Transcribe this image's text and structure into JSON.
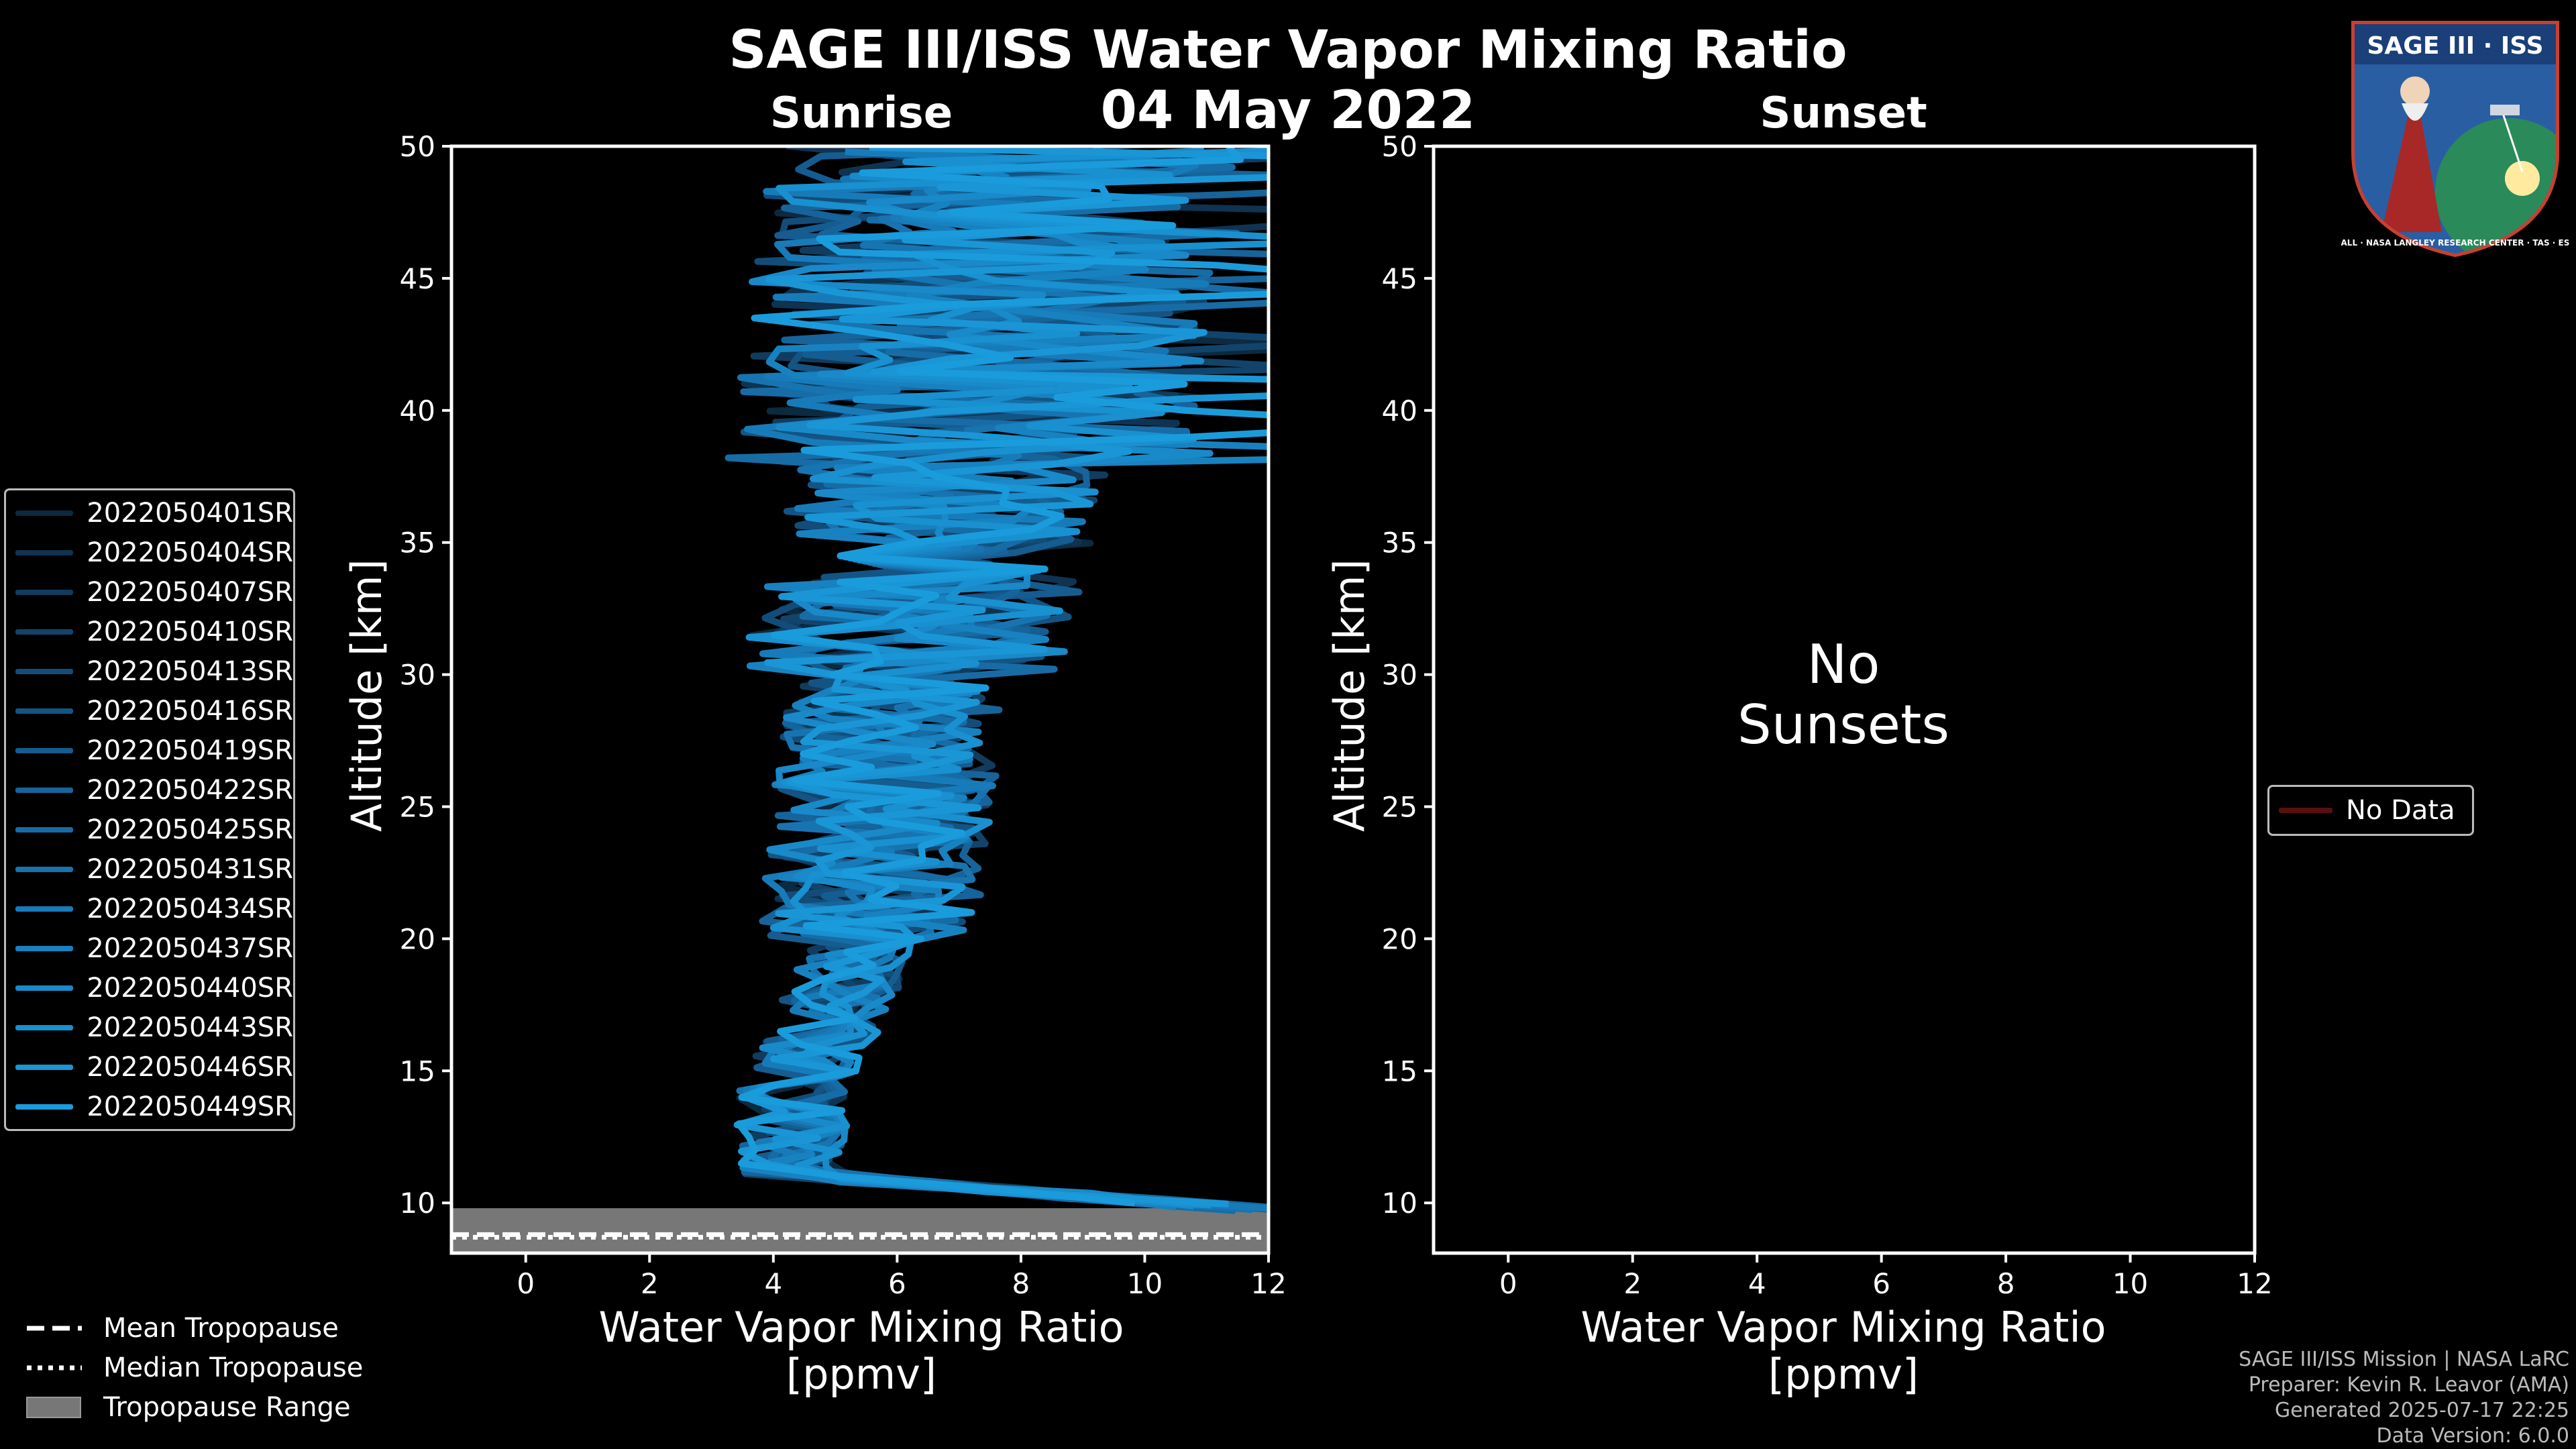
{
  "header": {
    "title": "SAGE III/ISS Water Vapor Mixing Ratio",
    "date": "04 May 2022"
  },
  "colors": {
    "background": "#000000",
    "profile_base": "#1a91d0",
    "tropopause_range": "#777777",
    "nodata": "#5a0f0f"
  },
  "logo": {
    "name": "SAGE III · ISS",
    "ring_text": "BALL · NASA LANGLEY RESEARCH CENTER · TAS · ESA"
  },
  "chart_data": [
    {
      "panel": "sunrise",
      "type": "line",
      "title": "Sunrise",
      "xlabel_line1": "Water Vapor Mixing Ratio",
      "xlabel_line2": "[ppmv]",
      "ylabel": "Altitude [km]",
      "xlim": [
        -1.2,
        12
      ],
      "ylim": [
        8.1,
        50
      ],
      "xticks": [
        0,
        2,
        4,
        6,
        8,
        10,
        12
      ],
      "yticks": [
        10,
        15,
        20,
        25,
        30,
        35,
        40,
        45,
        50
      ],
      "tropopause": {
        "mean_km": 8.8,
        "median_km": 8.7,
        "range_km": [
          8.1,
          9.8
        ]
      },
      "series": [
        {
          "name": "2022050401SR",
          "color": "#0c2a40"
        },
        {
          "name": "2022050404SR",
          "color": "#0f3350"
        },
        {
          "name": "2022050407SR",
          "color": "#113c5e"
        },
        {
          "name": "2022050410SR",
          "color": "#12446b"
        },
        {
          "name": "2022050413SR",
          "color": "#134c78"
        },
        {
          "name": "2022050416SR",
          "color": "#145484"
        },
        {
          "name": "2022050419SR",
          "color": "#155c90"
        },
        {
          "name": "2022050422SR",
          "color": "#16649b"
        },
        {
          "name": "2022050425SR",
          "color": "#176ca6"
        },
        {
          "name": "2022050431SR",
          "color": "#1774b0"
        },
        {
          "name": "2022050434SR",
          "color": "#187bb9"
        },
        {
          "name": "2022050437SR",
          "color": "#1882c1"
        },
        {
          "name": "2022050440SR",
          "color": "#1989c9"
        },
        {
          "name": "2022050443SR",
          "color": "#1990d0"
        },
        {
          "name": "2022050446SR",
          "color": "#1a96d6"
        },
        {
          "name": "2022050449SR",
          "color": "#1a9cdc"
        }
      ]
    },
    {
      "panel": "sunset",
      "type": "line",
      "title": "Sunset",
      "xlabel_line1": "Water Vapor Mixing Ratio",
      "xlabel_line2": "[ppmv]",
      "ylabel": "Altitude [km]",
      "xlim": [
        -1.2,
        12
      ],
      "ylim": [
        8.1,
        50
      ],
      "xticks": [
        0,
        2,
        4,
        6,
        8,
        10,
        12
      ],
      "yticks": [
        10,
        15,
        20,
        25,
        30,
        35,
        40,
        45,
        50
      ],
      "no_data_line1": "No",
      "no_data_line2": "Sunsets",
      "series": [
        {
          "name": "No Data",
          "color": "#5a0f0f"
        }
      ]
    }
  ],
  "tropopause_legend": [
    {
      "label": "Mean Tropopause",
      "style": "dashed"
    },
    {
      "label": "Median Tropopause",
      "style": "dotted"
    },
    {
      "label": "Tropopause Range",
      "style": "patch"
    }
  ],
  "credits": {
    "line1": "SAGE III/ISS Mission | NASA LaRC",
    "line2": "Preparer: Kevin R. Leavor (AMA)",
    "line3": "Generated 2025-07-17 22:25",
    "line4": "Data Version: 6.0.0"
  }
}
